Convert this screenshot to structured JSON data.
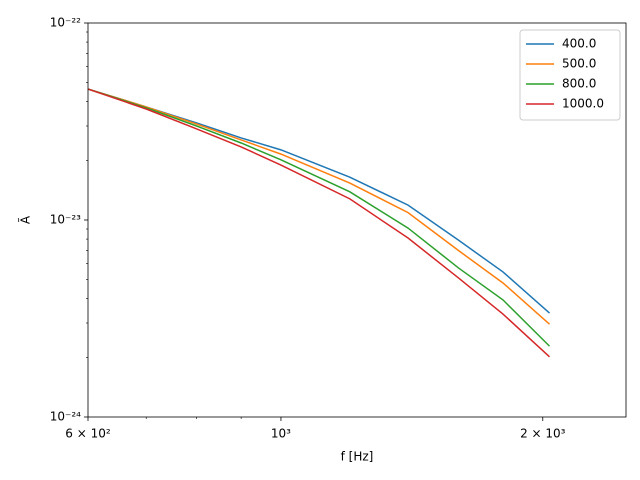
{
  "chart_data": {
    "type": "line",
    "xlabel": "f [Hz]",
    "ylabel": "Ã",
    "xscale": "log",
    "yscale": "log",
    "xlim": [
      600,
      2493
    ],
    "ylim": [
      1e-24,
      1e-22
    ],
    "xticks": [
      {
        "value": 600,
        "label": "6 × 10²"
      },
      {
        "value": 1000,
        "label": "10³"
      },
      {
        "value": 2000,
        "label": "2 × 10³"
      }
    ],
    "xminor": [
      700,
      800,
      900
    ],
    "yticks": [
      {
        "value": 1e-24,
        "label": "10⁻²⁴"
      },
      {
        "value": 1e-23,
        "label": "10⁻²³"
      },
      {
        "value": 1e-22,
        "label": "10⁻²²"
      }
    ],
    "yminor": [
      2e-24,
      3e-24,
      4e-24,
      5e-24,
      6e-24,
      7e-24,
      8e-24,
      9e-24,
      2e-23,
      3e-23,
      4e-23,
      5e-23,
      6e-23,
      7e-23,
      8e-23,
      9e-23
    ],
    "legend": "upper right",
    "x": [
      600,
      700,
      800,
      900,
      1000,
      1200,
      1400,
      1600,
      1800,
      2036
    ],
    "series": [
      {
        "name": "400.0",
        "color": "#1f77b4",
        "values": [
          4.62e-23,
          3.75e-23,
          3.11e-23,
          2.61e-23,
          2.27e-23,
          1.65e-23,
          1.19e-23,
          7.9e-24,
          5.45e-24,
          3.37e-24
        ]
      },
      {
        "name": "500.0",
        "color": "#ff7f0e",
        "values": [
          4.62e-23,
          3.75e-23,
          3.07e-23,
          2.55e-23,
          2.16e-23,
          1.54e-23,
          1.09e-23,
          7e-24,
          4.79e-24,
          2.96e-24
        ]
      },
      {
        "name": "800.0",
        "color": "#2ca02c",
        "values": [
          4.62e-23,
          3.71e-23,
          3e-23,
          2.46e-23,
          2.02e-23,
          1.39e-23,
          9.1e-24,
          5.71e-24,
          3.93e-24,
          2.29e-24
        ]
      },
      {
        "name": "1000.0",
        "color": "#d62728",
        "values": [
          4.62e-23,
          3.66e-23,
          2.9e-23,
          2.35e-23,
          1.9e-23,
          1.28e-23,
          8.1e-24,
          5.08e-24,
          3.33e-24,
          2.02e-24
        ]
      }
    ]
  }
}
